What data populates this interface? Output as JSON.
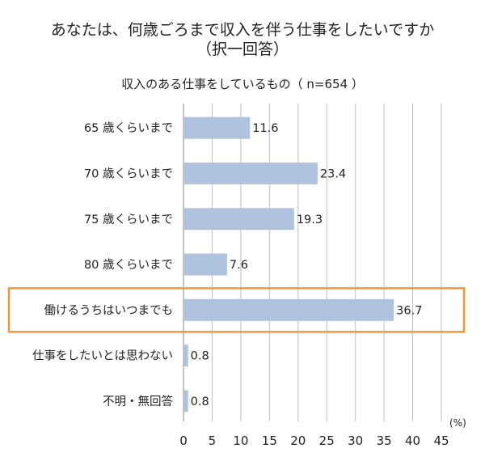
{
  "chart_data": {
    "type": "bar",
    "orientation": "horizontal",
    "title_lines": [
      "あなたは、何歳ごろまで収入を伴う仕事をしたいですか",
      "（択一回答）"
    ],
    "subtitle": "収入のある仕事をしているもの（ n=654 ）",
    "categories": [
      "65 歳くらいまで",
      "70 歳くらいまで",
      "75 歳くらいまで",
      "80 歳くらいまで",
      "働けるうちはいつまでも",
      "仕事をしたいとは思わない",
      "不明・無回答"
    ],
    "values": [
      11.6,
      23.4,
      19.3,
      7.6,
      36.7,
      0.8,
      0.8
    ],
    "value_labels": [
      "11.6",
      "23.4",
      "19.3",
      "7.6",
      "36.7",
      "0.8",
      "0.8"
    ],
    "xlim": [
      0,
      45
    ],
    "xticks": [
      0,
      5,
      10,
      15,
      20,
      25,
      30,
      35,
      40,
      45
    ],
    "unit": "(%)",
    "grid": "vertical",
    "highlighted_category": "働けるうちはいつまでも",
    "colors": {
      "bar": "#b0c3de",
      "highlight_border": "#f0963c",
      "grid": "#bfbfbf",
      "axis": "#888888"
    }
  }
}
